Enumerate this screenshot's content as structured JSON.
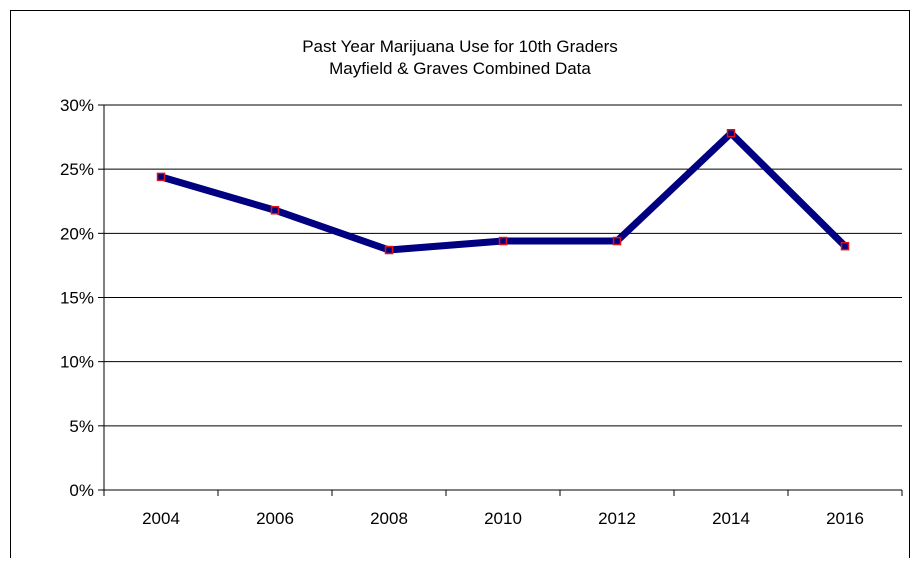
{
  "chart_data": {
    "type": "line",
    "title": "Past Year Marijuana Use for 10th Graders",
    "subtitle": "Mayfield & Graves Combined Data",
    "categories": [
      "2004",
      "2006",
      "2008",
      "2010",
      "2012",
      "2014",
      "2016"
    ],
    "series": [
      {
        "values": [
          0.244,
          0.218,
          0.187,
          0.194,
          0.194,
          0.278,
          0.19
        ]
      }
    ],
    "yticks": [
      "0%",
      "5%",
      "10%",
      "15%",
      "20%",
      "25%",
      "30%"
    ],
    "ylim": [
      0,
      0.3
    ],
    "grid": true,
    "legend": "none",
    "colors": {
      "line": "#000080",
      "marker_edge": "#e0101a",
      "marker_fill": "#000080",
      "grid": "#000000"
    }
  }
}
